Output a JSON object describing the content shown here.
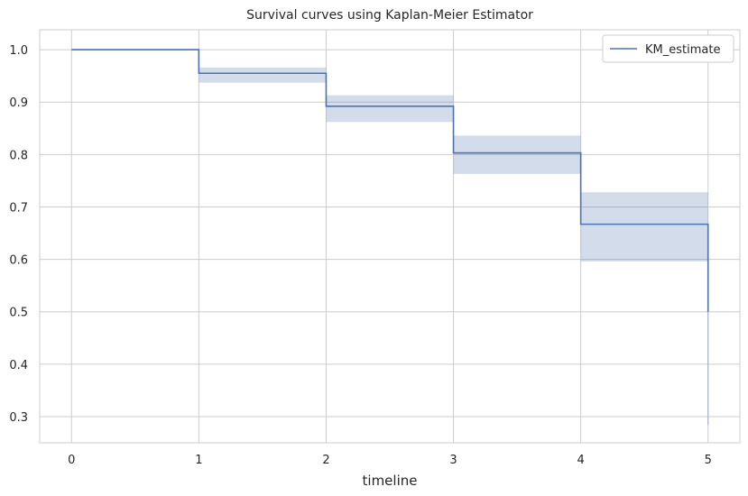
{
  "chart_data": {
    "type": "line",
    "title": "Survival curves using Kaplan-Meier Estimator",
    "xlabel": "timeline",
    "ylabel": "",
    "xlim": [
      -0.25,
      5.25
    ],
    "ylim": [
      0.25,
      1.038
    ],
    "xticks": [
      0,
      1,
      2,
      3,
      4,
      5
    ],
    "xtick_labels": [
      "0",
      "1",
      "2",
      "3",
      "4",
      "5"
    ],
    "yticks": [
      0.3,
      0.4,
      0.5,
      0.6,
      0.7,
      0.8,
      0.9,
      1.0
    ],
    "ytick_labels": [
      "0.3",
      "0.4",
      "0.5",
      "0.6",
      "0.7",
      "0.8",
      "0.9",
      "1.0"
    ],
    "grid": true,
    "legend_position": "top-right",
    "series": [
      {
        "name": "KM_estimate",
        "color": "#4c72b0",
        "drawstyle": "steps-post",
        "x": [
          0,
          1,
          2,
          3,
          4,
          5
        ],
        "values": [
          1.0,
          0.955,
          0.892,
          0.803,
          0.667,
          0.5
        ],
        "ci_lower": [
          1.0,
          0.937,
          0.862,
          0.763,
          0.596,
          0.284
        ],
        "ci_upper": [
          1.0,
          0.966,
          0.913,
          0.836,
          0.728,
          0.5
        ]
      }
    ]
  }
}
